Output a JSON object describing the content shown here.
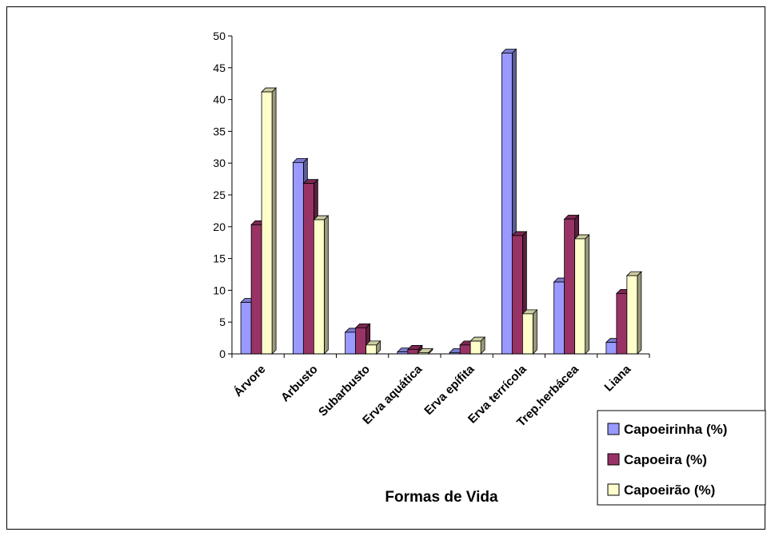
{
  "chart_data": {
    "type": "bar",
    "style": "3d-clustered-column",
    "categories": [
      "Árvore",
      "Arbusto",
      "Subarbusto",
      "Erva aquática",
      "Erva epífita",
      "Erva terrícola",
      "Trep.herbácea",
      "Liana"
    ],
    "series": [
      {
        "name": "Capoeirinha (%)",
        "color": "#9999ff",
        "values": [
          8.1,
          30.1,
          3.4,
          0.3,
          0.2,
          47.3,
          11.3,
          1.8
        ]
      },
      {
        "name": "Capoeira (%)",
        "color": "#993366",
        "values": [
          20.3,
          26.8,
          4.1,
          0.7,
          1.4,
          18.6,
          21.2,
          9.5
        ]
      },
      {
        "name": "Capoeirão (%)",
        "color": "#ffffcc",
        "values": [
          41.2,
          21.1,
          1.4,
          0.2,
          2.0,
          6.3,
          18.1,
          12.3
        ]
      }
    ],
    "xlabel": "Formas de Vida",
    "ylabel": "",
    "ylim": [
      0,
      50
    ],
    "yticks": [
      "0",
      "5",
      "10",
      "15",
      "20",
      "25",
      "30",
      "35",
      "40",
      "45",
      "50"
    ],
    "grid": false,
    "legend_position": "bottom-right"
  }
}
